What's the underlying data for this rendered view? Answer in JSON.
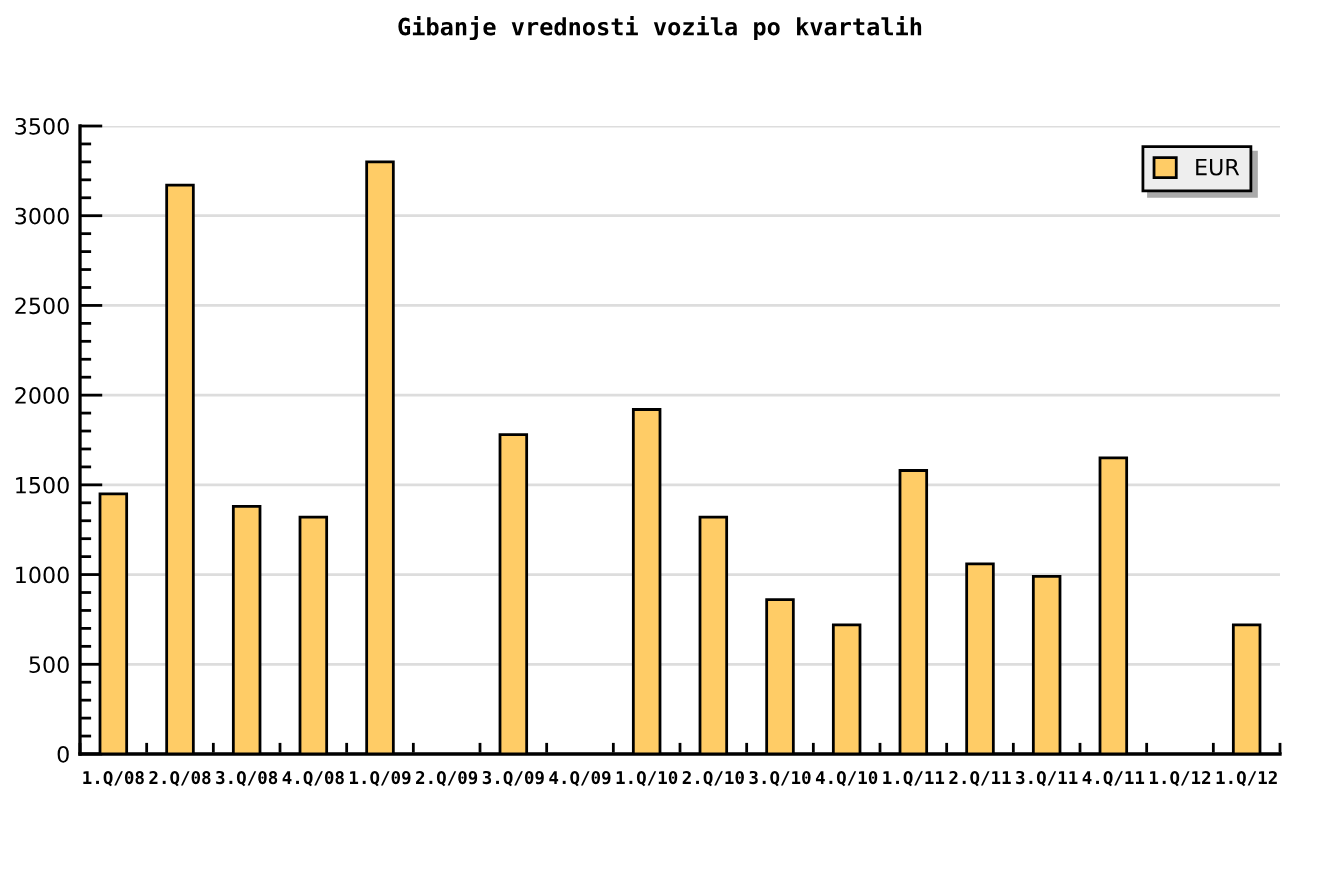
{
  "chart_data": {
    "type": "bar",
    "title": "Gibanje vrednosti vozila po kvartalih",
    "categories": [
      "1.Q/08",
      "2.Q/08",
      "3.Q/08",
      "4.Q/08",
      "1.Q/09",
      "2.Q/09",
      "3.Q/09",
      "4.Q/09",
      "1.Q/10",
      "2.Q/10",
      "3.Q/10",
      "4.Q/10",
      "1.Q/11",
      "2.Q/11",
      "3.Q/11",
      "4.Q/11",
      "1.Q/12",
      "1.Q/12"
    ],
    "series": [
      {
        "name": "EUR",
        "color": "#ffcc66",
        "values": [
          1450,
          3170,
          1380,
          1320,
          3300,
          null,
          1780,
          null,
          1920,
          1320,
          860,
          720,
          1580,
          1060,
          990,
          1650,
          null,
          720
        ]
      }
    ],
    "ylim": [
      0,
      3500
    ],
    "yticks": [
      0,
      500,
      1000,
      1500,
      2000,
      2500,
      3000,
      3500
    ],
    "grid": "y",
    "legend": "top right"
  }
}
